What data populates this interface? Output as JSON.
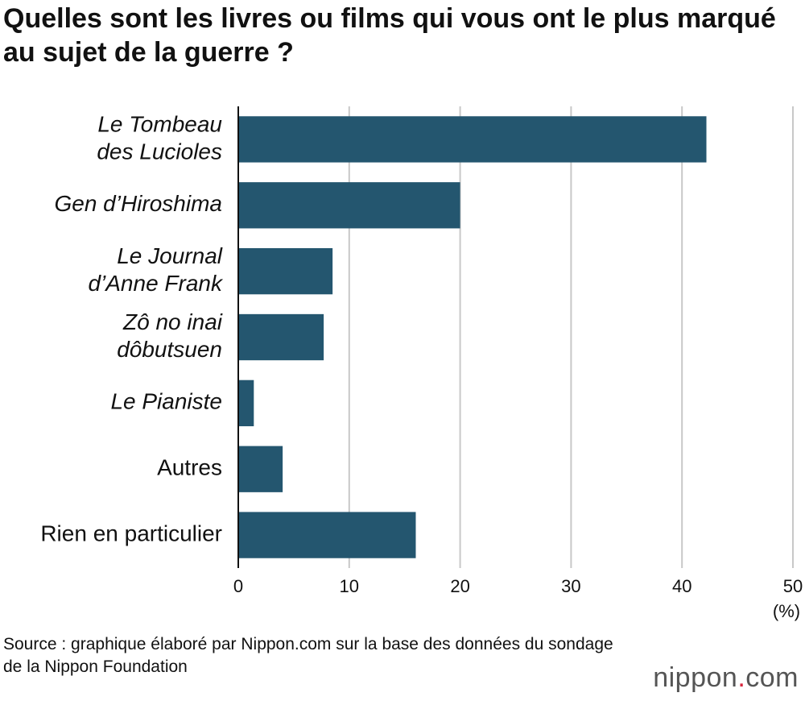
{
  "chart_data": {
    "type": "bar",
    "orientation": "horizontal",
    "title": "Quelles sont les livres ou films qui vous ont le plus marqué au sujet de la guerre ?",
    "categories": [
      [
        "Le Tombeau",
        "des Lucioles"
      ],
      [
        "Gen d’Hiroshima"
      ],
      [
        "Le Journal",
        "d’Anne Frank"
      ],
      [
        "Zô no inai",
        "dôbutsuen"
      ],
      [
        "Le Pianiste"
      ],
      [
        "Autres"
      ],
      [
        "Rien en particulier"
      ]
    ],
    "category_styles": [
      "italic",
      "italic",
      "italic",
      "italic",
      "italic",
      "normal",
      "normal"
    ],
    "values": [
      42.2,
      20.0,
      8.5,
      7.7,
      1.4,
      4.0,
      16.0
    ],
    "color": "#24566f",
    "xlim": [
      0,
      50
    ],
    "xticks": [
      0,
      10,
      20,
      30,
      40,
      50
    ],
    "xlabel": "(%)",
    "grid": true,
    "source": "Source : graphique élaboré par Nippon.com sur la base des données du sondage de la Nippon Foundation"
  },
  "logo": {
    "name": "nippon",
    "dot": ".",
    "tld": "com"
  }
}
